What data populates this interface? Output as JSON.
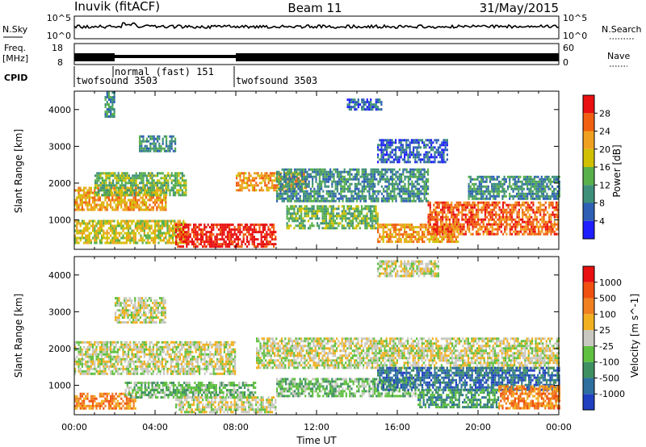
{
  "header": {
    "station": "Inuvik (fitACF)",
    "beam": "Beam 11",
    "date": "31/May/2015"
  },
  "top_panels": {
    "nsky_label": "N.Sky",
    "nsky_ticks": [
      "10^5",
      "10^0"
    ],
    "nsearch_label": "N.Search",
    "nsearch_ticks": [
      "10^5",
      "10^0"
    ],
    "freq_label_1": "Freq.",
    "freq_label_2": "[MHz]",
    "freq_ticks": [
      "18",
      "8"
    ],
    "nave_label": "Nave",
    "nave_ticks": [
      "60",
      "0"
    ],
    "cpid_label": "CPID",
    "cpid_segments": [
      {
        "label": "twofsound 3503",
        "start_hour": 0,
        "end_hour": 2.0
      },
      {
        "label": "normal (fast) 151",
        "start_hour": 2.0,
        "end_hour": 8.0
      },
      {
        "label": "twofsound 3503",
        "start_hour": 8.0,
        "end_hour": 24.0
      }
    ]
  },
  "x_axis": {
    "label": "Time UT",
    "ticks": [
      "00:00",
      "04:00",
      "08:00",
      "12:00",
      "16:00",
      "20:00",
      "00:00"
    ]
  },
  "chart_data": [
    {
      "type": "heatmap",
      "name": "power",
      "ylabel": "Slant Range [km]",
      "yticks": [
        "1000",
        "2000",
        "3000",
        "4000"
      ],
      "ylim": [
        200,
        4500
      ],
      "xlim_hours": [
        0,
        24
      ],
      "colorbar_label": "Power [dB]",
      "colorbar_ticks": [
        "4",
        "8",
        "12",
        "16",
        "20",
        "24",
        "28"
      ],
      "colorbar_colors": [
        "#1e1eff",
        "#2e5fb5",
        "#3e8f7a",
        "#58b04a",
        "#d0c000",
        "#f0a020",
        "#f06010",
        "#e81010"
      ],
      "bands": [
        {
          "t0": 0.0,
          "t1": 4.5,
          "r0": 1300,
          "r1": 1900,
          "level": 5
        },
        {
          "t0": 1.0,
          "t1": 5.5,
          "r0": 1700,
          "r1": 2300,
          "level": 3
        },
        {
          "t0": 3.2,
          "t1": 5.0,
          "r0": 2900,
          "r1": 3300,
          "level": 2
        },
        {
          "t0": 0.0,
          "t1": 5.5,
          "r0": 400,
          "r1": 1000,
          "level": 4
        },
        {
          "t0": 5.0,
          "t1": 10.0,
          "r0": 300,
          "r1": 900,
          "level": 7
        },
        {
          "t0": 8.0,
          "t1": 11.5,
          "r0": 1800,
          "r1": 2300,
          "level": 5
        },
        {
          "t0": 10.0,
          "t1": 17.5,
          "r0": 1500,
          "r1": 2400,
          "level": 2
        },
        {
          "t0": 10.5,
          "t1": 15.0,
          "r0": 800,
          "r1": 1400,
          "level": 3
        },
        {
          "t0": 13.5,
          "t1": 15.2,
          "r0": 4000,
          "r1": 4300,
          "level": 1
        },
        {
          "t0": 15.0,
          "t1": 18.5,
          "r0": 2600,
          "r1": 3200,
          "level": 1
        },
        {
          "t0": 15.0,
          "t1": 19.0,
          "r0": 400,
          "r1": 900,
          "level": 5
        },
        {
          "t0": 17.5,
          "t1": 24.0,
          "r0": 600,
          "r1": 1500,
          "level": 6
        },
        {
          "t0": 19.5,
          "t1": 24.0,
          "r0": 1600,
          "r1": 2200,
          "level": 2
        },
        {
          "t0": 1.5,
          "t1": 2.0,
          "r0": 3800,
          "r1": 4500,
          "level": 2
        }
      ]
    },
    {
      "type": "heatmap",
      "name": "velocity",
      "ylabel": "Slant Range [km]",
      "yticks": [
        "1000",
        "2000",
        "3000",
        "4000"
      ],
      "ylim": [
        200,
        4500
      ],
      "xlim_hours": [
        0,
        24
      ],
      "colorbar_label": "Velocity [m s^-1]",
      "colorbar_ticks": [
        "1000",
        "500",
        "100",
        "25",
        "-25",
        "-100",
        "-500",
        "-1000"
      ],
      "colorbar_colors": [
        "#2040c0",
        "#2e6fa0",
        "#3e9060",
        "#60c040",
        "#c8c8c0",
        "#f0b020",
        "#f08020",
        "#f05010",
        "#e81010"
      ],
      "bands": [
        {
          "t0": 0.0,
          "t1": 8.0,
          "r0": 1300,
          "r1": 2200,
          "level": 4
        },
        {
          "t0": 2.0,
          "t1": 4.5,
          "r0": 2700,
          "r1": 3400,
          "level": 4
        },
        {
          "t0": 0.0,
          "t1": 3.0,
          "r0": 400,
          "r1": 800,
          "level": 6
        },
        {
          "t0": 2.5,
          "t1": 9.0,
          "r0": 700,
          "r1": 1100,
          "level": 3
        },
        {
          "t0": 5.0,
          "t1": 10.0,
          "r0": 300,
          "r1": 700,
          "level": 4
        },
        {
          "t0": 9.0,
          "t1": 24.0,
          "r0": 1500,
          "r1": 2300,
          "level": 4
        },
        {
          "t0": 10.0,
          "t1": 17.0,
          "r0": 700,
          "r1": 1200,
          "level": 3
        },
        {
          "t0": 15.0,
          "t1": 24.0,
          "r0": 900,
          "r1": 1500,
          "level": 1
        },
        {
          "t0": 17.0,
          "t1": 21.0,
          "r0": 400,
          "r1": 900,
          "level": 2
        },
        {
          "t0": 21.0,
          "t1": 24.0,
          "r0": 400,
          "r1": 1000,
          "level": 6
        },
        {
          "t0": 15.0,
          "t1": 18.0,
          "r0": 4000,
          "r1": 4400,
          "level": 4
        }
      ]
    }
  ]
}
